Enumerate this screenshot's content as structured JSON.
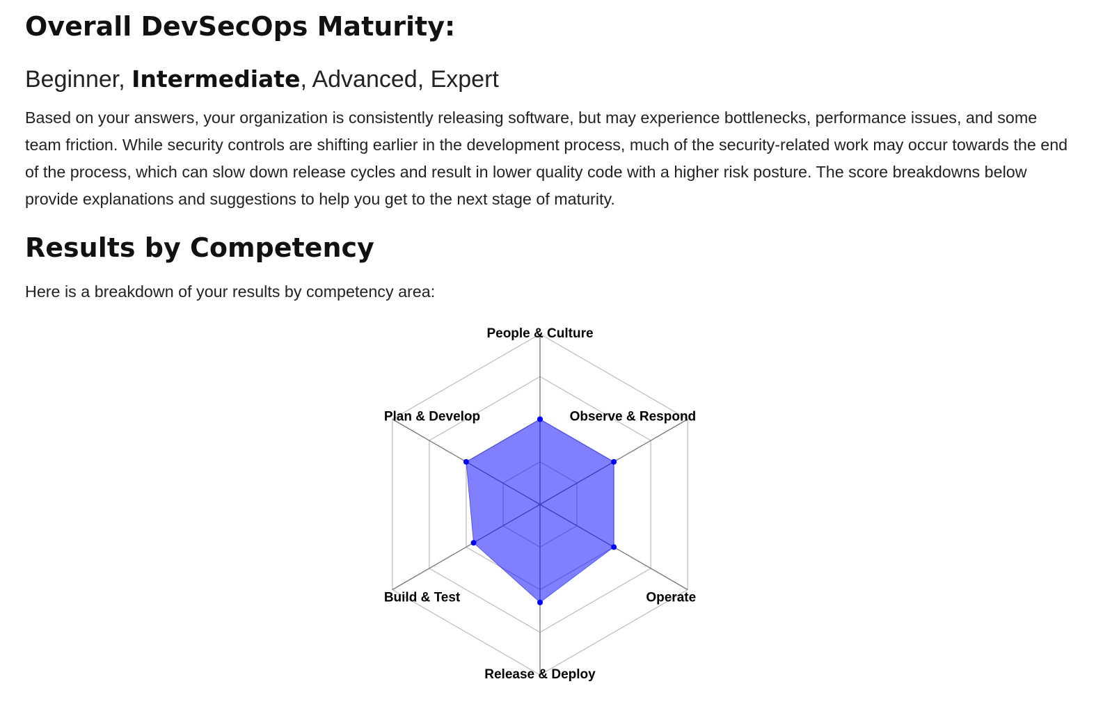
{
  "heading": "Overall DevSecOps Maturity:",
  "maturity": {
    "parts": [
      "Beginner, ",
      "Intermediate",
      ", Advanced, Expert"
    ],
    "bold": 1
  },
  "description": "Based on your answers, your organization is consistently releasing software, but may experience bottlenecks, performance issues, and some team friction. While security controls are shifting earlier in the development process, much of the security-related work may occur towards the end of the process, which can slow down release cycles and result in lower quality code with a higher risk posture. The score breakdowns below provide explanations and suggestions to help you get to the next stage of maturity.",
  "section_heading": "Results by Competency",
  "intro": "Here is a breakdown of your results by competency area:",
  "chart_data": {
    "type": "radar",
    "categories": [
      "People & Culture",
      "Observe & Respond",
      "Operate",
      "Release & Deploy",
      "Build & Test",
      "Plan & Develop"
    ],
    "values": [
      2,
      2,
      2,
      2.3,
      1.8,
      2
    ],
    "color": "#0000ff",
    "fill_opacity": 0.5,
    "rlim": [
      0,
      4
    ],
    "rticks": [
      1,
      2,
      3,
      4
    ],
    "grid": true
  }
}
